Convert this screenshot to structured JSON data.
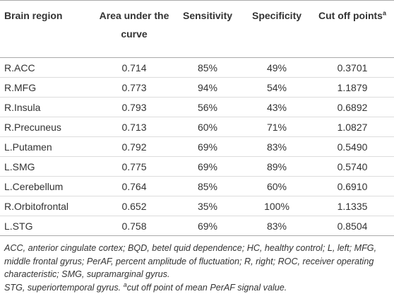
{
  "table": {
    "header": [
      "Brain region",
      "Area under the curve",
      "Sensitivity",
      "Specificity",
      "Cut off points"
    ],
    "header_superscript": "a",
    "rows": [
      [
        "R.ACC",
        "0.714",
        "85%",
        "49%",
        "0.3701"
      ],
      [
        "R.MFG",
        "0.773",
        "94%",
        "54%",
        "1.1879"
      ],
      [
        "R.Insula",
        "0.793",
        "56%",
        "43%",
        "0.6892"
      ],
      [
        "R.Precuneus",
        "0.713",
        "60%",
        "71%",
        "1.0827"
      ],
      [
        "L.Putamen",
        "0.792",
        "69%",
        "83%",
        "0.5490"
      ],
      [
        "L.SMG",
        "0.775",
        "69%",
        "89%",
        "0.5740"
      ],
      [
        "L.Cerebellum",
        "0.764",
        "85%",
        "60%",
        "0.6910"
      ],
      [
        "R.Orbitofrontal",
        "0.652",
        "35%",
        "100%",
        "1.1335"
      ],
      [
        "L.STG",
        "0.758",
        "69%",
        "83%",
        "0.8504"
      ]
    ]
  },
  "footnote": {
    "abbreviations": "ACC, anterior cingulate cortex; BQD, betel quid dependence; HC, healthy control; L, left; MFG, middle frontal gyrus; PerAF, percent amplitude of fluctuation; R, right; ROC, receiver operating characteristic; SMG, supramarginal gyrus.",
    "last_line": "STG, superiortemporal gyrus.",
    "superscript": "a",
    "note": "cut off point of mean PerAF signal value."
  }
}
